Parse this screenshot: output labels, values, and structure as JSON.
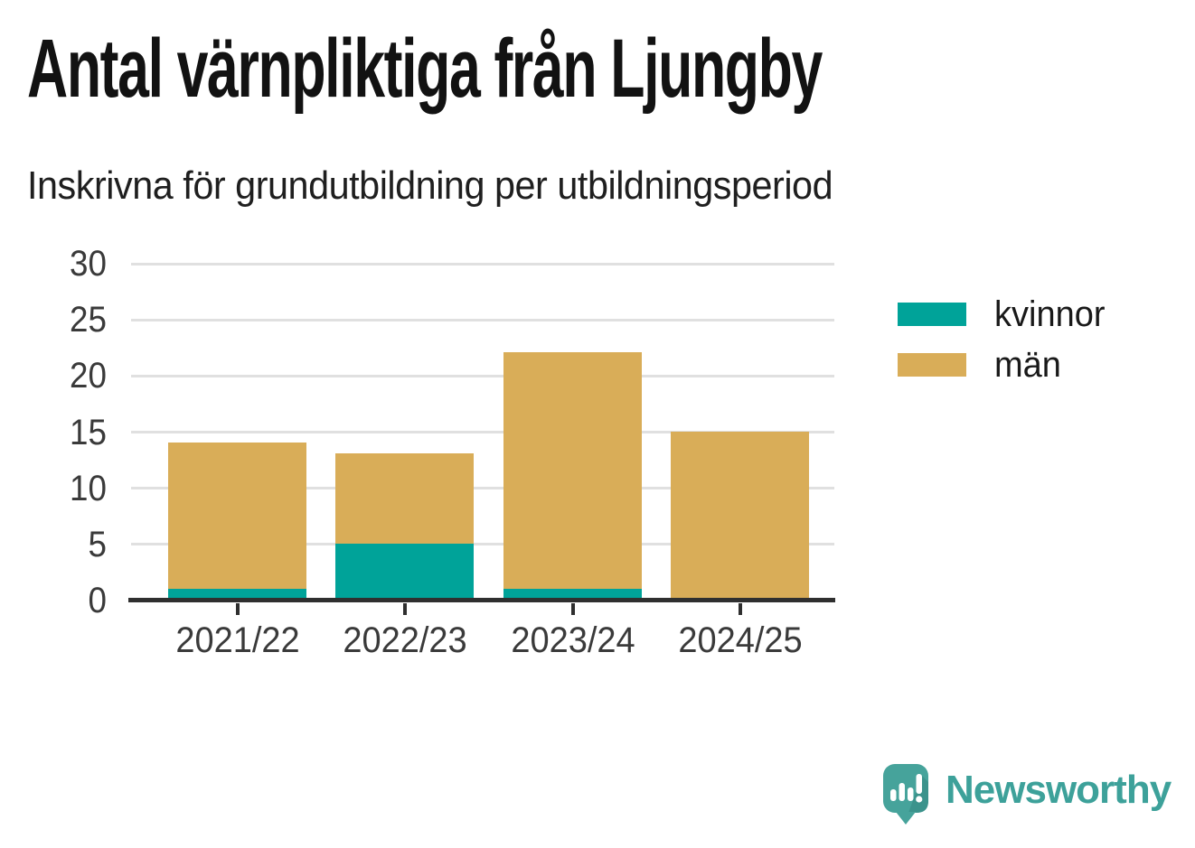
{
  "header": {
    "title": "Antal värnpliktiga från Ljungby",
    "subtitle": "Inskrivna för grundutbildning per utbildningsperiod"
  },
  "chart_data": {
    "type": "bar",
    "stacked": true,
    "title": "Antal värnpliktiga från Ljungby",
    "subtitle": "Inskrivna för grundutbildning per utbildningsperiod",
    "categories": [
      "2021/22",
      "2022/23",
      "2023/24",
      "2024/25"
    ],
    "series": [
      {
        "name": "kvinnor",
        "color": "#00a399",
        "values": [
          1,
          5,
          1,
          0
        ]
      },
      {
        "name": "män",
        "color": "#d9ad58",
        "values": [
          13,
          8,
          21,
          15
        ]
      }
    ],
    "totals": [
      14,
      13,
      22,
      15
    ],
    "xlabel": "",
    "ylabel": "",
    "ylim": [
      0,
      30
    ],
    "yticks": [
      0,
      5,
      10,
      15,
      20,
      25,
      30
    ],
    "grid": "horizontal",
    "legend_position": "right"
  },
  "colors": {
    "kvinnor": "#00a399",
    "man": "#d9ad58",
    "title_text": "#121212",
    "axis_text": "#3a3a3a",
    "gridline": "#e0e0e0",
    "axis_line": "#2f2f2f",
    "brand": "#3da19a"
  },
  "brand": {
    "wordmark": "Newsworthy",
    "logo_icon": "speech-bubble-bar-chart-exclamation-icon"
  }
}
